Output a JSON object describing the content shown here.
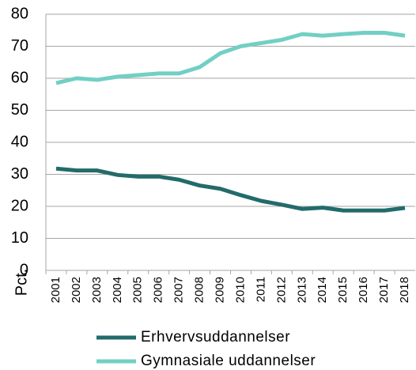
{
  "chart_data": {
    "type": "line",
    "y_label": "Pct.",
    "categories": [
      "2001",
      "2002",
      "2003",
      "2004",
      "2005",
      "2006",
      "2007",
      "2008",
      "2009",
      "2010",
      "2011",
      "2012",
      "2013",
      "2014",
      "2015",
      "2016",
      "2017",
      "2018"
    ],
    "series": [
      {
        "name": "Erhvervsuddannelser",
        "color": "#236b6b",
        "values": [
          31.8,
          31.2,
          31.2,
          29.8,
          29.3,
          29.3,
          28.3,
          26.5,
          25.5,
          23.5,
          21.7,
          20.5,
          19.2,
          19.6,
          18.7,
          18.7,
          18.7,
          19.5
        ]
      },
      {
        "name": "Gymnasiale uddannelser",
        "color": "#72cfc4",
        "values": [
          58.5,
          60,
          59.5,
          60.5,
          61,
          61.5,
          61.5,
          63.5,
          67.8,
          70,
          71,
          72,
          73.8,
          73.3,
          73.8,
          74.2,
          74.2,
          73.3
        ]
      }
    ],
    "ylim": [
      0,
      80
    ],
    "yticks": [
      0,
      10,
      20,
      30,
      40,
      50,
      60,
      70,
      80
    ],
    "grid": true
  }
}
